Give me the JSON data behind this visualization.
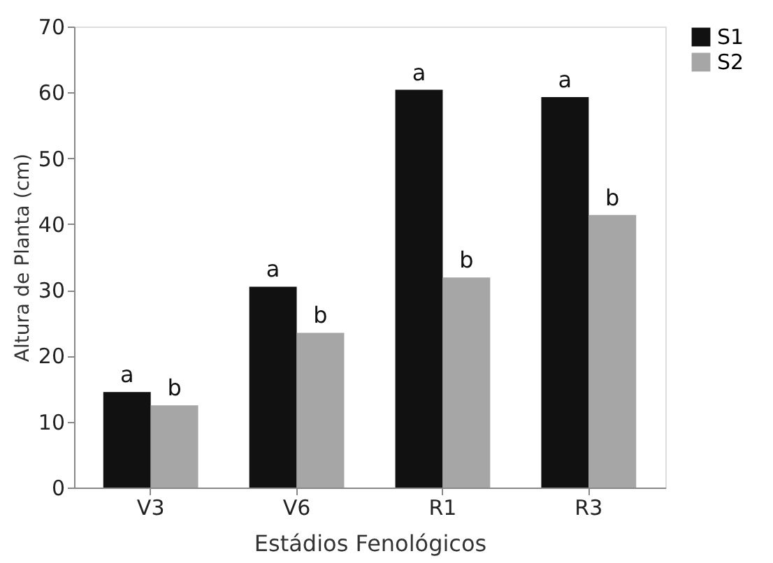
{
  "chart_data": {
    "type": "bar",
    "xlabel": "Estádios Fenológicos",
    "ylabel": "Altura de Planta (cm)",
    "categories": [
      "V3",
      "V6",
      "R1",
      "R3"
    ],
    "series": [
      {
        "name": "S1",
        "color": "#111111",
        "values": [
          14.5,
          30.5,
          60.4,
          59.3
        ],
        "value_labels": [
          "a",
          "a",
          "a",
          "a"
        ]
      },
      {
        "name": "S2",
        "color": "#a6a6a6",
        "values": [
          12.5,
          23.5,
          31.9,
          41.4
        ],
        "value_labels": [
          "b",
          "b",
          "b",
          "b"
        ]
      }
    ],
    "ylim": [
      0,
      70
    ],
    "yticks": [
      0,
      10,
      20,
      30,
      40,
      50,
      60,
      70
    ],
    "grid": false,
    "legend": "right"
  }
}
